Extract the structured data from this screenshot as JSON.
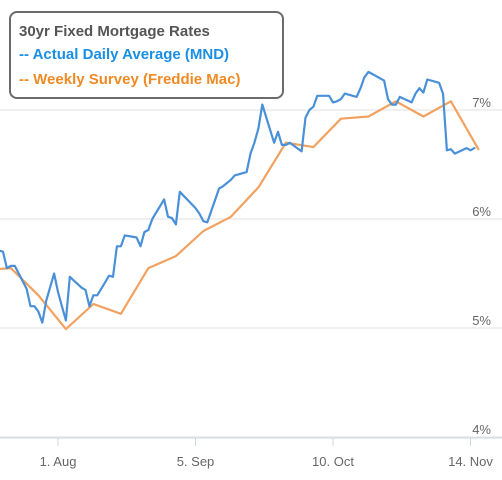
{
  "colors": {
    "mnd": "#4a90d9",
    "freddie": "#f2a160",
    "grid": "#e2e2e2",
    "axis_text": "#666666",
    "legend_border": "#6b6b6b"
  },
  "legend": {
    "title": "30yr Fixed Mortgage Rates",
    "items": [
      {
        "label": "-- Actual Daily Average (MND)",
        "color": "#1a8fe3"
      },
      {
        "label": "-- Weekly Survey (Freddie Mac)",
        "color": "#f08a24"
      }
    ]
  },
  "chart_data": {
    "type": "line",
    "title": "30yr Fixed Mortgage Rates",
    "grid": true,
    "legend_position": "top-left",
    "x_range": [
      "2023-07-13",
      "2023-11-20"
    ],
    "ylim": [
      4,
      8
    ],
    "y_ticks": [
      {
        "value": 7,
        "label": "7%"
      },
      {
        "value": 6,
        "label": "6%"
      },
      {
        "value": 5,
        "label": "5%"
      },
      {
        "value": 4,
        "label": "4%"
      }
    ],
    "x_ticks": [
      {
        "date": "2023-08-01",
        "label": "1. Aug"
      },
      {
        "date": "2023-09-05",
        "label": "5. Sep"
      },
      {
        "date": "2023-10-10",
        "label": "10. Oct"
      },
      {
        "date": "2023-11-14",
        "label": "14. Nov"
      }
    ],
    "series": [
      {
        "name": "Actual Daily Average (MND)",
        "color": "#4a90d9",
        "points": [
          [
            "2023-07-13",
            5.74
          ],
          [
            "2023-07-14",
            5.73
          ],
          [
            "2023-07-17",
            5.71
          ],
          [
            "2023-07-18",
            5.7
          ],
          [
            "2023-07-19",
            5.55
          ],
          [
            "2023-07-20",
            5.57
          ],
          [
            "2023-07-21",
            5.57
          ],
          [
            "2023-07-24",
            5.36
          ],
          [
            "2023-07-25",
            5.2
          ],
          [
            "2023-07-26",
            5.2
          ],
          [
            "2023-07-27",
            5.15
          ],
          [
            "2023-07-28",
            5.05
          ],
          [
            "2023-07-29",
            5.25
          ],
          [
            "2023-07-31",
            5.5
          ],
          [
            "2023-08-01",
            5.33
          ],
          [
            "2023-08-02",
            5.2
          ],
          [
            "2023-08-03",
            5.07
          ],
          [
            "2023-08-04",
            5.47
          ],
          [
            "2023-08-07",
            5.37
          ],
          [
            "2023-08-08",
            5.35
          ],
          [
            "2023-08-09",
            5.2
          ],
          [
            "2023-08-10",
            5.3
          ],
          [
            "2023-08-11",
            5.3
          ],
          [
            "2023-08-14",
            5.48
          ],
          [
            "2023-08-15",
            5.47
          ],
          [
            "2023-08-16",
            5.75
          ],
          [
            "2023-08-17",
            5.75
          ],
          [
            "2023-08-18",
            5.85
          ],
          [
            "2023-08-21",
            5.83
          ],
          [
            "2023-08-22",
            5.75
          ],
          [
            "2023-08-23",
            5.88
          ],
          [
            "2023-08-24",
            5.9
          ],
          [
            "2023-08-25",
            6.0
          ],
          [
            "2023-08-28",
            6.18
          ],
          [
            "2023-08-29",
            6.02
          ],
          [
            "2023-08-30",
            6.01
          ],
          [
            "2023-08-31",
            5.95
          ],
          [
            "2023-09-01",
            6.25
          ],
          [
            "2023-09-05",
            6.1
          ],
          [
            "2023-09-06",
            6.05
          ],
          [
            "2023-09-07",
            5.98
          ],
          [
            "2023-09-08",
            5.97
          ],
          [
            "2023-09-11",
            6.28
          ],
          [
            "2023-09-12",
            6.3
          ],
          [
            "2023-09-13",
            6.33
          ],
          [
            "2023-09-14",
            6.36
          ],
          [
            "2023-09-15",
            6.4
          ],
          [
            "2023-09-18",
            6.43
          ],
          [
            "2023-09-19",
            6.6
          ],
          [
            "2023-09-20",
            6.7
          ],
          [
            "2023-09-21",
            6.83
          ],
          [
            "2023-09-22",
            7.05
          ],
          [
            "2023-09-25",
            6.7
          ],
          [
            "2023-09-26",
            6.8
          ],
          [
            "2023-09-27",
            6.68
          ],
          [
            "2023-09-28",
            6.68
          ],
          [
            "2023-09-29",
            6.7
          ],
          [
            "2023-10-02",
            6.62
          ],
          [
            "2023-10-03",
            6.93
          ],
          [
            "2023-10-04",
            7.0
          ],
          [
            "2023-10-05",
            7.03
          ],
          [
            "2023-10-06",
            7.13
          ],
          [
            "2023-10-09",
            7.13
          ],
          [
            "2023-10-10",
            7.07
          ],
          [
            "2023-10-11",
            7.08
          ],
          [
            "2023-10-12",
            7.1
          ],
          [
            "2023-10-13",
            7.15
          ],
          [
            "2023-10-16",
            7.12
          ],
          [
            "2023-10-17",
            7.2
          ],
          [
            "2023-10-18",
            7.3
          ],
          [
            "2023-10-19",
            7.35
          ],
          [
            "2023-10-20",
            7.33
          ],
          [
            "2023-10-23",
            7.27
          ],
          [
            "2023-10-24",
            7.1
          ],
          [
            "2023-10-25",
            7.05
          ],
          [
            "2023-10-26",
            7.05
          ],
          [
            "2023-10-27",
            7.12
          ],
          [
            "2023-10-30",
            7.07
          ],
          [
            "2023-10-31",
            7.15
          ],
          [
            "2023-11-01",
            7.2
          ],
          [
            "2023-11-02",
            7.16
          ],
          [
            "2023-11-03",
            7.28
          ],
          [
            "2023-11-06",
            7.25
          ],
          [
            "2023-11-07",
            7.15
          ],
          [
            "2023-11-08",
            6.63
          ],
          [
            "2023-11-09",
            6.64
          ],
          [
            "2023-11-10",
            6.6
          ],
          [
            "2023-11-13",
            6.65
          ],
          [
            "2023-11-14",
            6.63
          ],
          [
            "2023-11-15",
            6.65
          ]
        ]
      },
      {
        "name": "Weekly Survey (Freddie Mac)",
        "color": "#f2a160",
        "points": [
          [
            "2023-07-13",
            5.53
          ],
          [
            "2023-07-20",
            5.55
          ],
          [
            "2023-07-27",
            5.3
          ],
          [
            "2023-08-03",
            4.99
          ],
          [
            "2023-08-10",
            5.22
          ],
          [
            "2023-08-17",
            5.13
          ],
          [
            "2023-08-24",
            5.55
          ],
          [
            "2023-08-31",
            5.66
          ],
          [
            "2023-09-07",
            5.89
          ],
          [
            "2023-09-14",
            6.02
          ],
          [
            "2023-09-21",
            6.29
          ],
          [
            "2023-09-28",
            6.7
          ],
          [
            "2023-10-05",
            6.66
          ],
          [
            "2023-10-12",
            6.92
          ],
          [
            "2023-10-19",
            6.94
          ],
          [
            "2023-10-26",
            7.08
          ],
          [
            "2023-11-02",
            6.94
          ],
          [
            "2023-11-09",
            7.08
          ],
          [
            "2023-11-16",
            6.64
          ]
        ]
      }
    ]
  }
}
